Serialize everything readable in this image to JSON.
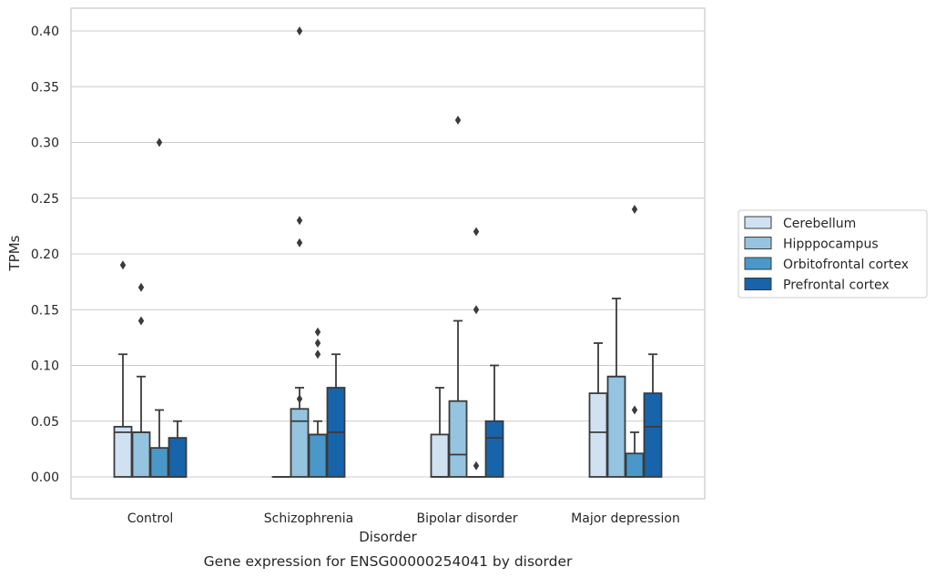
{
  "chart_data": {
    "type": "box",
    "title": "",
    "caption": "Gene expression for ENSG00000254041 by disorder",
    "xlabel": "Disorder",
    "ylabel": "TPMs",
    "ylim": [
      -0.02,
      0.42
    ],
    "yticks": [
      "0.00",
      "0.05",
      "0.10",
      "0.15",
      "0.20",
      "0.25",
      "0.30",
      "0.35",
      "0.40"
    ],
    "yticks_values": [
      0,
      0.05,
      0.1,
      0.15,
      0.2,
      0.25,
      0.3,
      0.35,
      0.4
    ],
    "grid": true,
    "legend_position": "center-right, outside plot",
    "categories": [
      "Control",
      "Schizophrenia",
      "Bipolar disorder",
      "Major depression"
    ],
    "series": [
      {
        "name": "Cerebellum",
        "color": "#d0e1f2",
        "boxes": [
          {
            "q1": 0.0,
            "median": 0.04,
            "q3": 0.045,
            "whisker_low": 0.0,
            "whisker_high": 0.11,
            "outliers": [
              0.19
            ]
          },
          {
            "q1": 0.0,
            "median": 0.0,
            "q3": 0.0,
            "whisker_low": 0.0,
            "whisker_high": 0.0,
            "outliers": []
          },
          {
            "q1": 0.0,
            "median": 0.0,
            "q3": 0.038,
            "whisker_low": 0.0,
            "whisker_high": 0.08,
            "outliers": []
          },
          {
            "q1": 0.0,
            "median": 0.04,
            "q3": 0.075,
            "whisker_low": 0.0,
            "whisker_high": 0.12,
            "outliers": []
          }
        ]
      },
      {
        "name": "Hipppocampus",
        "color": "#94c4df",
        "boxes": [
          {
            "q1": 0.0,
            "median": 0.04,
            "q3": 0.04,
            "whisker_low": 0.0,
            "whisker_high": 0.09,
            "outliers": [
              0.17,
              0.14
            ]
          },
          {
            "q1": 0.0,
            "median": 0.05,
            "q3": 0.061,
            "whisker_low": 0.0,
            "whisker_high": 0.08,
            "outliers": [
              0.4,
              0.21,
              0.23,
              0.07
            ]
          },
          {
            "q1": 0.0,
            "median": 0.02,
            "q3": 0.068,
            "whisker_low": 0.0,
            "whisker_high": 0.14,
            "outliers": [
              0.32
            ]
          },
          {
            "q1": 0.0,
            "median": 0.09,
            "q3": 0.09,
            "whisker_low": 0.0,
            "whisker_high": 0.16,
            "outliers": []
          }
        ]
      },
      {
        "name": "Orbitofrontal cortex",
        "color": "#4a98c9",
        "boxes": [
          {
            "q1": 0.0,
            "median": 0.0,
            "q3": 0.026,
            "whisker_low": 0.0,
            "whisker_high": 0.06,
            "outliers": [
              0.3
            ]
          },
          {
            "q1": 0.0,
            "median": 0.038,
            "q3": 0.038,
            "whisker_low": 0.0,
            "whisker_high": 0.05,
            "outliers": [
              0.13,
              0.12,
              0.11
            ]
          },
          {
            "q1": 0.0,
            "median": 0.0,
            "q3": 0.0,
            "whisker_low": 0.0,
            "whisker_high": 0.0,
            "outliers": [
              0.22,
              0.15,
              0.01
            ]
          },
          {
            "q1": 0.0,
            "median": 0.0,
            "q3": 0.021,
            "whisker_low": 0.0,
            "whisker_high": 0.04,
            "outliers": [
              0.24,
              0.06
            ]
          }
        ]
      },
      {
        "name": "Prefrontal cortex",
        "color": "#1764ab",
        "boxes": [
          {
            "q1": 0.0,
            "median": 0.0,
            "q3": 0.035,
            "whisker_low": 0.0,
            "whisker_high": 0.05,
            "outliers": []
          },
          {
            "q1": 0.0,
            "median": 0.04,
            "q3": 0.08,
            "whisker_low": 0.0,
            "whisker_high": 0.11,
            "outliers": []
          },
          {
            "q1": 0.0,
            "median": 0.035,
            "q3": 0.05,
            "whisker_low": 0.0,
            "whisker_high": 0.1,
            "outliers": []
          },
          {
            "q1": 0.0,
            "median": 0.045,
            "q3": 0.075,
            "whisker_low": 0.0,
            "whisker_high": 0.11,
            "outliers": []
          }
        ]
      }
    ]
  }
}
